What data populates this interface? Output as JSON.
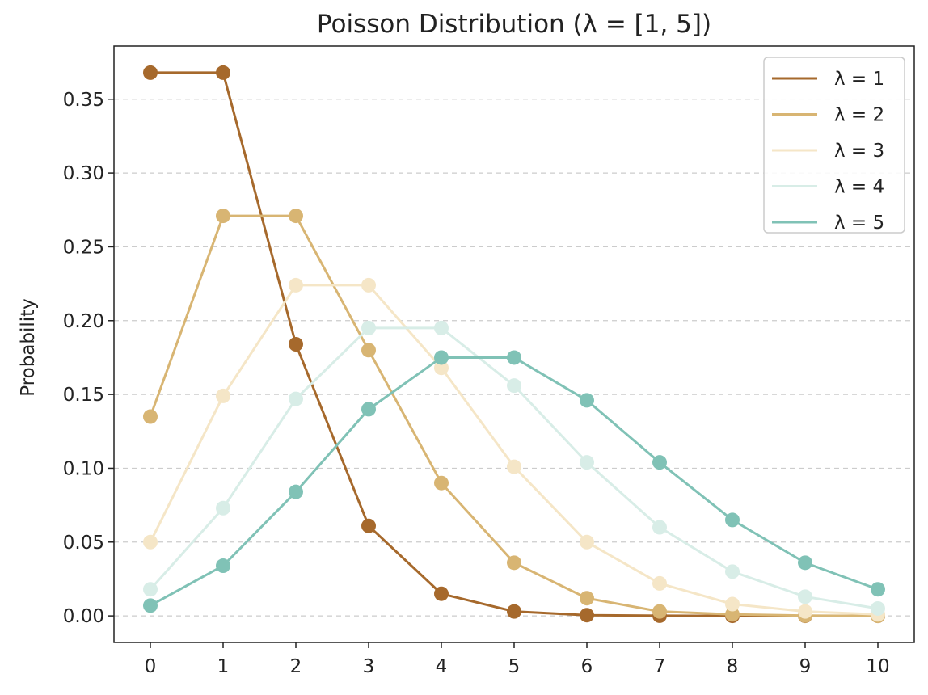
{
  "chart_data": {
    "type": "line",
    "title": "Poisson Distribution (λ = [1, 5])",
    "xlabel": "",
    "ylabel": "Probability",
    "x": [
      0,
      1,
      2,
      3,
      4,
      5,
      6,
      7,
      8,
      9,
      10
    ],
    "xticks": [
      "0",
      "1",
      "2",
      "3",
      "4",
      "5",
      "6",
      "7",
      "8",
      "9",
      "10"
    ],
    "yticks": [
      {
        "value": 0.0,
        "label": "0.00"
      },
      {
        "value": 0.05,
        "label": "0.05"
      },
      {
        "value": 0.1,
        "label": "0.10"
      },
      {
        "value": 0.15,
        "label": "0.15"
      },
      {
        "value": 0.2,
        "label": "0.20"
      },
      {
        "value": 0.25,
        "label": "0.25"
      },
      {
        "value": 0.3,
        "label": "0.30"
      },
      {
        "value": 0.35,
        "label": "0.35"
      }
    ],
    "xlim": [
      -0.5,
      10.5
    ],
    "ylim": [
      -0.018,
      0.386
    ],
    "grid": "horizontal dashed",
    "legend_position": "top-right",
    "series": [
      {
        "name": "λ = 1",
        "color": "#a6692c",
        "values": [
          0.368,
          0.368,
          0.184,
          0.061,
          0.015,
          0.003,
          0.0005,
          0.0001,
          0.0,
          0.0,
          0.0
        ]
      },
      {
        "name": "λ = 2",
        "color": "#d8b573",
        "values": [
          0.135,
          0.271,
          0.271,
          0.18,
          0.09,
          0.036,
          0.012,
          0.003,
          0.001,
          0.0002,
          0.0
        ]
      },
      {
        "name": "λ = 3",
        "color": "#f5e6c7",
        "values": [
          0.05,
          0.149,
          0.224,
          0.224,
          0.168,
          0.101,
          0.05,
          0.022,
          0.008,
          0.003,
          0.001
        ]
      },
      {
        "name": "λ = 4",
        "color": "#d8ede7",
        "values": [
          0.018,
          0.073,
          0.147,
          0.195,
          0.195,
          0.156,
          0.104,
          0.06,
          0.03,
          0.013,
          0.005
        ]
      },
      {
        "name": "λ = 5",
        "color": "#80c2b6",
        "values": [
          0.007,
          0.034,
          0.084,
          0.14,
          0.175,
          0.175,
          0.146,
          0.104,
          0.065,
          0.036,
          0.018
        ]
      }
    ]
  }
}
